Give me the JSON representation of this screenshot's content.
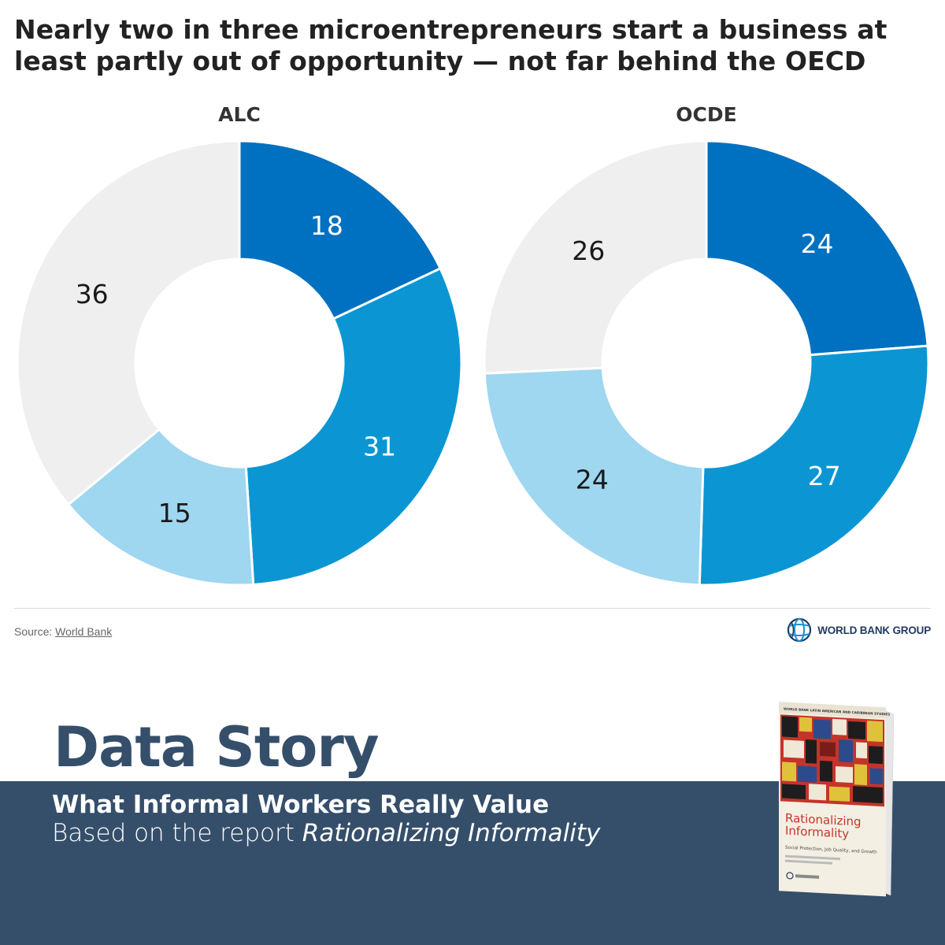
{
  "title": "Nearly two in three microentrepreneurs start a business at least partly out of opportunity — not far behind the OECD",
  "chart_data": [
    {
      "type": "pie",
      "title": "ALC",
      "donut": true,
      "values": [
        18,
        31,
        15,
        36
      ],
      "colors": [
        "#0070c0",
        "#0b96d3",
        "#9fd6f0",
        "#efefef"
      ],
      "label_colors": [
        "#ffffff",
        "#ffffff",
        "#1a1a1a",
        "#1a1a1a"
      ]
    },
    {
      "type": "pie",
      "title": "OCDE",
      "donut": true,
      "values": [
        24,
        27,
        24,
        26
      ],
      "colors": [
        "#0070c0",
        "#0b96d3",
        "#9fd6f0",
        "#efefef"
      ],
      "label_colors": [
        "#ffffff",
        "#ffffff",
        "#1a1a1a",
        "#1a1a1a"
      ]
    }
  ],
  "source": {
    "prefix": "Source:",
    "link": "World Bank"
  },
  "logo": {
    "label": "WORLD BANK GROUP",
    "icon": "globe-icon"
  },
  "story": {
    "heading": "Data Story",
    "subtitle": "What Informal Workers Really Value",
    "based_on": "Based on the report",
    "report_name": "Rationalizing Informality"
  },
  "book": {
    "series": "WORLD BANK LATIN AMERICAN AND CARIBBEAN STUDIES",
    "title": "Rationalizing Informality",
    "subtitle": "Social Protection, Job Quality, and Growth"
  }
}
